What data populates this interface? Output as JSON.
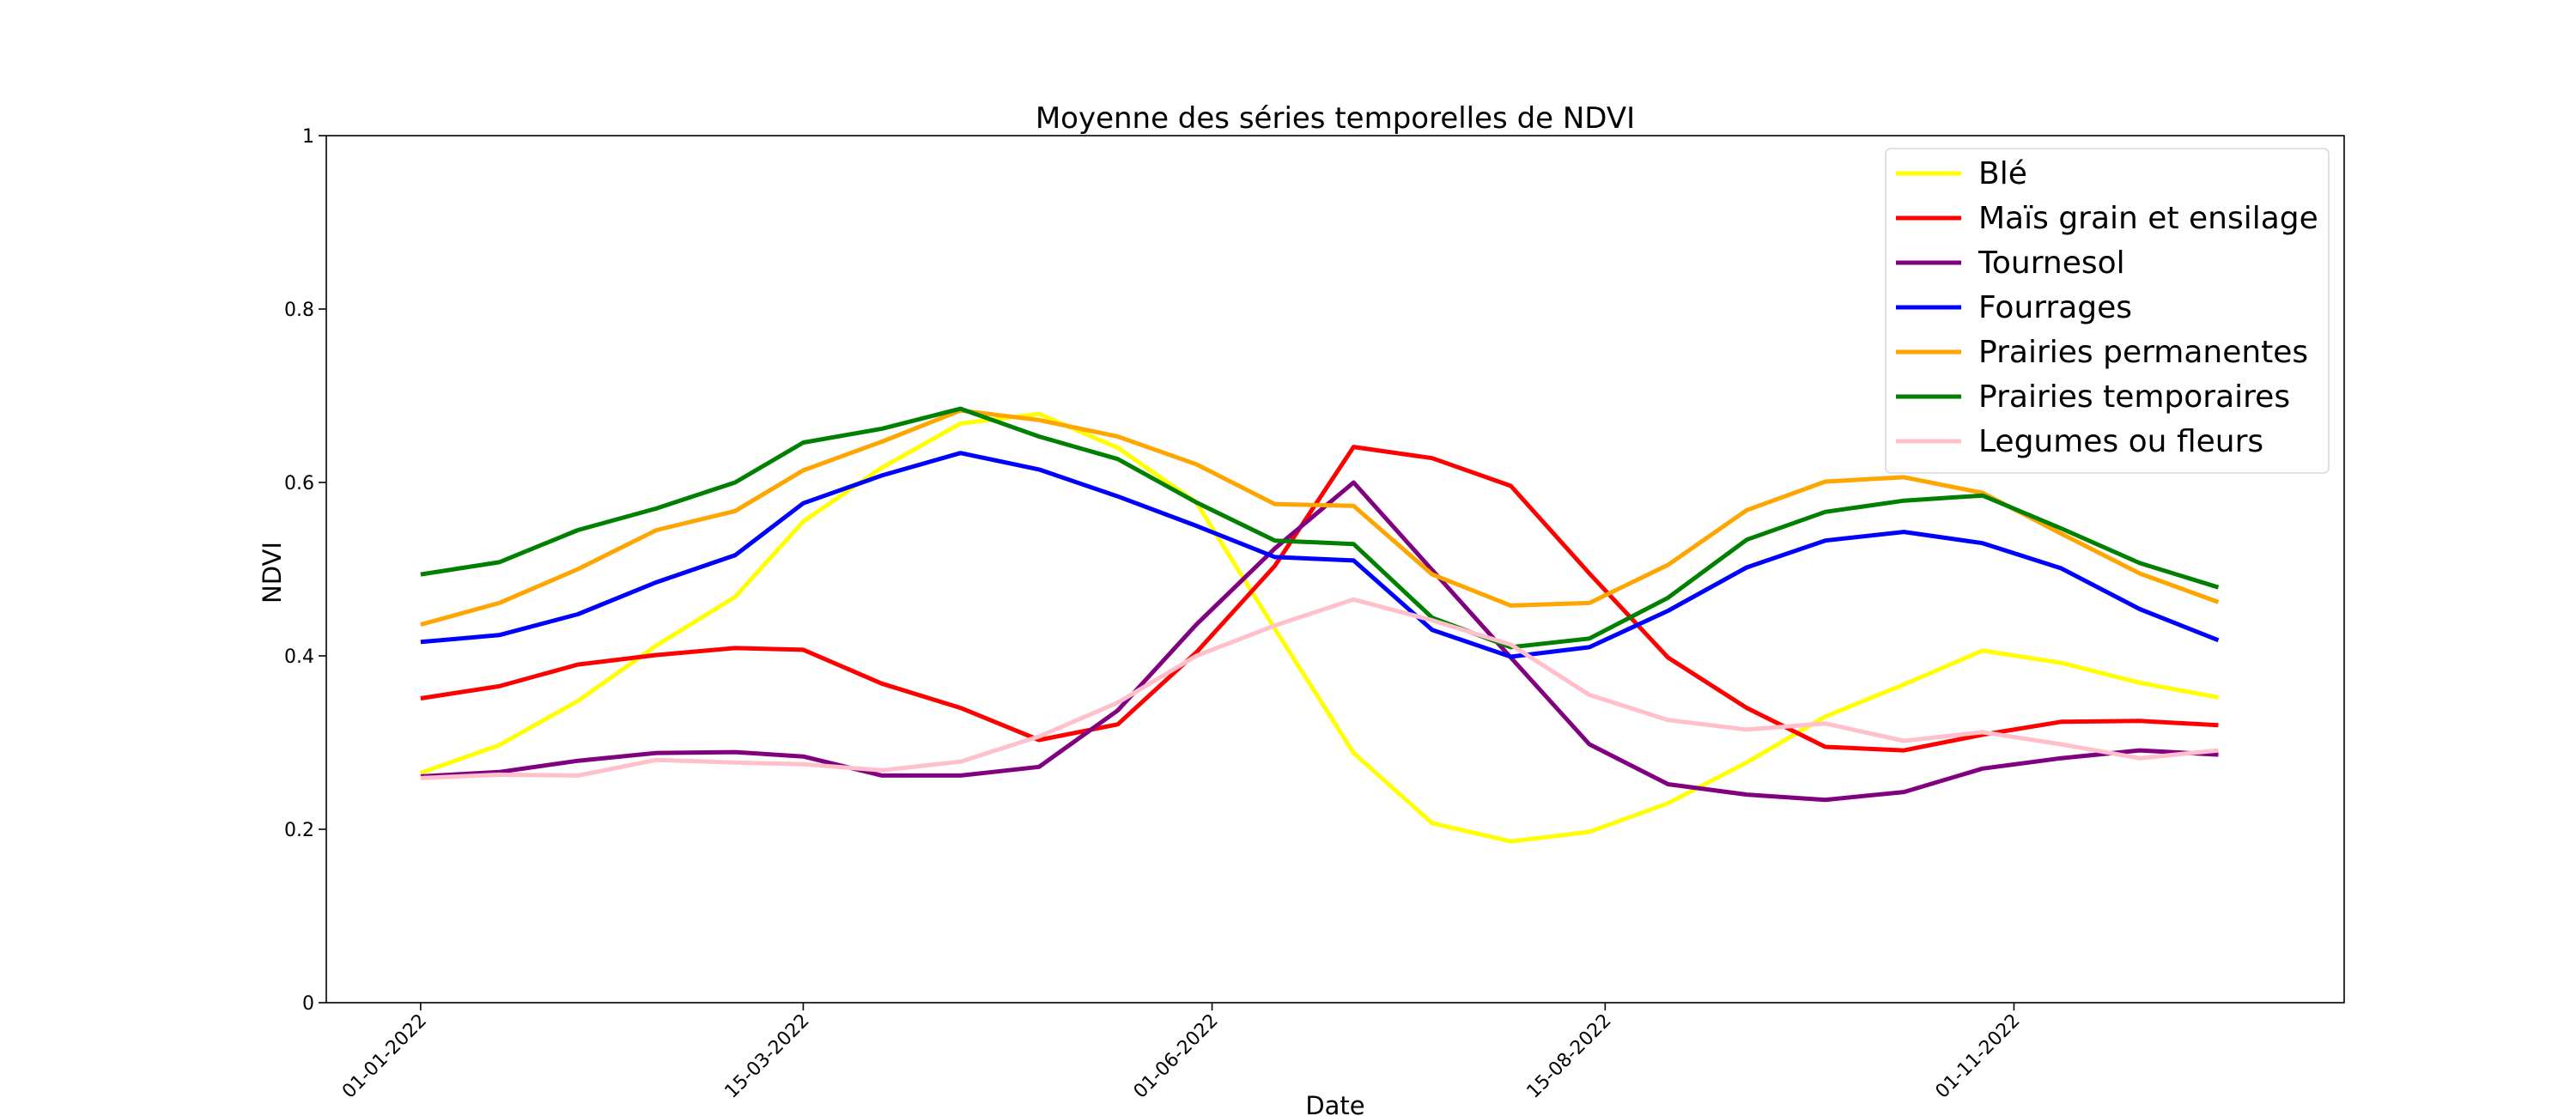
{
  "chart_data": {
    "type": "line",
    "title": "Moyenne des séries temporelles de NDVI",
    "xlabel": "Date",
    "ylabel": "NDVI",
    "ylim": [
      0,
      1
    ],
    "yticks": [
      0,
      0.2,
      0.4,
      0.6,
      0.8,
      1
    ],
    "ytick_labels": [
      "0",
      "0.2",
      "0.4",
      "0.6",
      "0.8",
      "1"
    ],
    "x": [
      "2022-01-01",
      "2022-01-11",
      "2022-01-21",
      "2022-01-31",
      "2022-02-10",
      "2022-02-20",
      "2022-03-02",
      "2022-03-12",
      "2022-03-22",
      "2022-04-01",
      "2022-04-11",
      "2022-04-21",
      "2022-05-01",
      "2022-05-11",
      "2022-05-21",
      "2022-05-31",
      "2022-06-10",
      "2022-06-20",
      "2022-06-30",
      "2022-07-10",
      "2022-07-20",
      "2022-07-30",
      "2022-08-09",
      "2022-08-19",
      "2022-08-29",
      "2022-09-08"
    ],
    "x_dates": [
      "2022-01-01",
      "2022-01-11",
      "2022-01-21",
      "2022-01-31",
      "2022-02-10",
      "2022-02-20",
      "2022-03-02",
      "2022-03-12",
      "2022-03-22",
      "2022-04-01",
      "2022-04-11",
      "2022-04-21",
      "2022-05-01",
      "2022-05-11",
      "2022-05-21",
      "2022-05-31",
      "2022-06-10",
      "2022-06-20",
      "2022-06-30",
      "2022-07-10",
      "2022-07-20",
      "2022-07-30",
      "2022-08-09",
      "2022-08-19",
      "2022-08-29",
      "2022-09-08"
    ],
    "x_real": [
      "2022-01-01",
      "2022-01-11",
      "2022-01-21",
      "2022-01-31",
      "2022-02-10",
      "2022-02-20",
      "2022-03-02",
      "2022-03-12",
      "2022-03-22",
      "2022-04-01",
      "2022-04-11",
      "2022-04-21",
      "2022-05-01",
      "2022-05-11",
      "2022-05-21",
      "2022-05-31",
      "2022-06-10",
      "2022-06-20",
      "2022-06-30",
      "2022-07-10",
      "2022-07-20",
      "2022-07-30",
      "2022-08-09",
      "2022-08-19",
      "2022-08-29",
      "2022-09-08"
    ],
    "dates": [
      "2022-01-01",
      "2022-01-16",
      "2022-01-31",
      "2022-02-15",
      "2022-03-02",
      "2022-03-15",
      "2022-03-30",
      "2022-04-14",
      "2022-04-29",
      "2022-05-14",
      "2022-05-29",
      "2022-06-13",
      "2022-06-28",
      "2022-07-13",
      "2022-07-28",
      "2022-08-12",
      "2022-08-27",
      "2022-09-11",
      "2022-09-26",
      "2022-10-11",
      "2022-10-26",
      "2022-11-10",
      "2022-11-25",
      "2022-12-10"
    ],
    "xticks": [
      "2022-01-01",
      "2022-03-15",
      "2022-06-01",
      "2022-08-15",
      "2022-11-01"
    ],
    "xtick_labels": [
      "01-01-2022",
      "15-03-2022",
      "01-06-2022",
      "15-08-2022",
      "01-11-2022"
    ],
    "x_range": [
      "2021-12-14",
      "2023-01-03"
    ],
    "grid": false,
    "legend_position": "top-right",
    "series": [
      {
        "name": "Blé",
        "color": "#ffff00",
        "values": [
          0.265,
          0.297,
          0.348,
          0.412,
          0.468,
          0.555,
          0.617,
          0.668,
          0.679,
          0.64,
          0.577,
          0.431,
          0.288,
          0.207,
          0.186,
          0.197,
          0.23,
          0.277,
          0.33,
          0.367,
          0.406,
          0.392,
          0.369,
          0.352
        ]
      },
      {
        "name": "Maïs grain et ensilage",
        "color": "#ff0000",
        "values": [
          0.351,
          0.365,
          0.39,
          0.401,
          0.409,
          0.407,
          0.368,
          0.34,
          0.303,
          0.321,
          0.404,
          0.504,
          0.641,
          0.628,
          0.596,
          0.495,
          0.398,
          0.34,
          0.295,
          0.291,
          0.309,
          0.324,
          0.325,
          0.32
        ]
      },
      {
        "name": "Tournesol",
        "color": "#800080",
        "values": [
          0.261,
          0.266,
          0.279,
          0.288,
          0.289,
          0.284,
          0.262,
          0.262,
          0.272,
          0.337,
          0.436,
          0.524,
          0.6,
          0.499,
          0.398,
          0.298,
          0.252,
          0.24,
          0.234,
          0.243,
          0.27,
          0.282,
          0.291,
          0.286
        ]
      },
      {
        "name": "Fourrages",
        "color": "#0000ff",
        "values": [
          0.416,
          0.424,
          0.448,
          0.485,
          0.516,
          0.576,
          0.608,
          0.634,
          0.615,
          0.584,
          0.55,
          0.514,
          0.51,
          0.43,
          0.399,
          0.41,
          0.452,
          0.502,
          0.533,
          0.543,
          0.53,
          0.501,
          0.454,
          0.418
        ]
      },
      {
        "name": "Prairies permanentes",
        "color": "#ffa500",
        "values": [
          0.436,
          0.461,
          0.5,
          0.545,
          0.567,
          0.614,
          0.647,
          0.683,
          0.672,
          0.653,
          0.621,
          0.575,
          0.573,
          0.494,
          0.458,
          0.461,
          0.505,
          0.568,
          0.601,
          0.606,
          0.588,
          0.541,
          0.495,
          0.462
        ]
      },
      {
        "name": "Prairies temporaires",
        "color": "#008000",
        "values": [
          0.494,
          0.508,
          0.545,
          0.57,
          0.6,
          0.646,
          0.662,
          0.685,
          0.653,
          0.627,
          0.577,
          0.533,
          0.529,
          0.444,
          0.41,
          0.42,
          0.467,
          0.534,
          0.566,
          0.579,
          0.585,
          0.547,
          0.507,
          0.479
        ]
      },
      {
        "name": "Legumes ou fleurs",
        "color": "#ffc0cb",
        "values": [
          0.259,
          0.263,
          0.262,
          0.28,
          0.277,
          0.275,
          0.268,
          0.278,
          0.307,
          0.346,
          0.4,
          0.435,
          0.465,
          0.441,
          0.413,
          0.355,
          0.326,
          0.315,
          0.322,
          0.302,
          0.312,
          0.298,
          0.282,
          0.291
        ]
      }
    ]
  }
}
